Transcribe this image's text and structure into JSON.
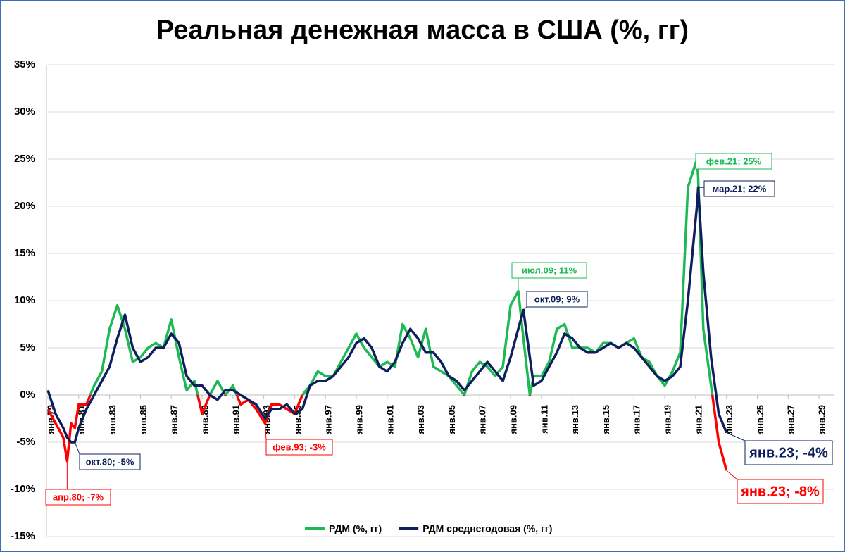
{
  "chart_data": {
    "type": "line",
    "title": "Реальная денежная масса в США (%, гг)",
    "x": [
      1979.0,
      1979.5,
      1980.0,
      1980.25,
      1980.5,
      1980.75,
      1981.0,
      1981.5,
      1982.0,
      1982.5,
      1983.0,
      1983.5,
      1984.0,
      1984.5,
      1985.0,
      1985.5,
      1986.0,
      1986.5,
      1987.0,
      1987.5,
      1988.0,
      1988.5,
      1989.0,
      1989.5,
      1990.0,
      1990.5,
      1991.0,
      1991.5,
      1992.0,
      1992.5,
      1993.083,
      1993.5,
      1994.0,
      1994.5,
      1995.0,
      1995.5,
      1996.0,
      1996.5,
      1997.0,
      1997.5,
      1998.0,
      1998.5,
      1999.0,
      1999.5,
      2000.0,
      2000.5,
      2001.0,
      2001.5,
      2002.0,
      2002.5,
      2003.0,
      2003.5,
      2004.0,
      2004.5,
      2005.0,
      2005.5,
      2006.0,
      2006.5,
      2007.0,
      2007.5,
      2008.0,
      2008.5,
      2009.0,
      2009.5,
      2009.833,
      2010.25,
      2010.5,
      2011.0,
      2011.5,
      2012.0,
      2012.5,
      2013.0,
      2013.5,
      2014.0,
      2014.5,
      2015.0,
      2015.5,
      2016.0,
      2016.5,
      2017.0,
      2017.5,
      2018.0,
      2018.5,
      2019.0,
      2019.5,
      2020.0,
      2020.5,
      2021.083,
      2021.167,
      2021.5,
      2022.0,
      2022.5,
      2023.0
    ],
    "series": [
      {
        "name": "РДМ (%, гг)",
        "color": "#1db954",
        "negative_color": "#ff0000",
        "values": [
          -1.5,
          -3,
          -4.5,
          -7,
          -3,
          -3.5,
          -1,
          -1,
          1,
          2.5,
          7,
          9.5,
          7,
          3.5,
          4,
          5,
          5.5,
          5,
          8,
          4,
          0.5,
          1.5,
          -2,
          0,
          1.5,
          0,
          1,
          -1,
          -0.5,
          -1.5,
          -3,
          -1,
          -1,
          -1.5,
          -2,
          0,
          1,
          2.5,
          2,
          2,
          3.5,
          5,
          6.5,
          5,
          4,
          3,
          3.5,
          3,
          7.5,
          6,
          4,
          7,
          3,
          2.5,
          2,
          1,
          0,
          2.5,
          3.5,
          3,
          2,
          3,
          9.5,
          11,
          6,
          0,
          2,
          2,
          3.5,
          7,
          7.5,
          5,
          5,
          5,
          4.5,
          5.5,
          5.5,
          5,
          5.5,
          6,
          4,
          3.5,
          2,
          1,
          2.5,
          4.5,
          22,
          25,
          23,
          7,
          1,
          -5,
          -8
        ]
      },
      {
        "name": "РДМ среднегодовая (%, гг)",
        "color": "#0d1f5c",
        "values": [
          0.5,
          -2,
          -3.5,
          -4.5,
          -5,
          -5,
          -3.5,
          -1.5,
          0,
          1.5,
          3,
          6,
          8.5,
          5,
          3.5,
          4,
          5,
          5,
          6.5,
          5.5,
          2,
          1,
          1,
          0,
          -0.5,
          0.5,
          0.5,
          0,
          -0.5,
          -1,
          -2.5,
          -1.5,
          -1.5,
          -1,
          -2,
          -1.5,
          1,
          1.5,
          1.5,
          2,
          3,
          4,
          5.5,
          6,
          5,
          3,
          2.5,
          3.5,
          5.5,
          7,
          6,
          4.5,
          4.5,
          3.5,
          2,
          1.5,
          0.5,
          1.5,
          2.5,
          3.5,
          2.5,
          1.5,
          4,
          7,
          9,
          4,
          1,
          1.5,
          3,
          4.5,
          6.5,
          6,
          5,
          4.5,
          4.5,
          5,
          5.5,
          5,
          5.5,
          5,
          4,
          3,
          2,
          1.5,
          2,
          3,
          10,
          20,
          22,
          13,
          4,
          -2,
          -4
        ]
      }
    ],
    "xlim": [
      1979,
      2030
    ],
    "xticks": [
      {
        "value": 1979,
        "label": "янв.79"
      },
      {
        "value": 1981,
        "label": "янв.81"
      },
      {
        "value": 1983,
        "label": "янв.83"
      },
      {
        "value": 1985,
        "label": "янв.85"
      },
      {
        "value": 1987,
        "label": "янв.87"
      },
      {
        "value": 1989,
        "label": "янв.89"
      },
      {
        "value": 1991,
        "label": "янв.91"
      },
      {
        "value": 1993,
        "label": "янв.93"
      },
      {
        "value": 1995,
        "label": "янв.95"
      },
      {
        "value": 1997,
        "label": "янв.97"
      },
      {
        "value": 1999,
        "label": "янв.99"
      },
      {
        "value": 2001,
        "label": "янв.01"
      },
      {
        "value": 2003,
        "label": "янв.03"
      },
      {
        "value": 2005,
        "label": "янв.05"
      },
      {
        "value": 2007,
        "label": "янв.07"
      },
      {
        "value": 2009,
        "label": "янв.09"
      },
      {
        "value": 2011,
        "label": "янв.11"
      },
      {
        "value": 2013,
        "label": "янв.13"
      },
      {
        "value": 2015,
        "label": "янв.15"
      },
      {
        "value": 2017,
        "label": "янв.17"
      },
      {
        "value": 2019,
        "label": "янв.19"
      },
      {
        "value": 2021,
        "label": "янв.21"
      },
      {
        "value": 2023,
        "label": "янв.23"
      },
      {
        "value": 2025,
        "label": "янв.25"
      },
      {
        "value": 2027,
        "label": "янв.27"
      },
      {
        "value": 2029,
        "label": "янв.29"
      }
    ],
    "ylim": [
      -15,
      35
    ],
    "yticks": [
      {
        "value": -15,
        "label": "-15%"
      },
      {
        "value": -10,
        "label": "-10%"
      },
      {
        "value": -5,
        "label": "-5%"
      },
      {
        "value": 0,
        "label": "0%"
      },
      {
        "value": 5,
        "label": "5%"
      },
      {
        "value": 10,
        "label": "10%"
      },
      {
        "value": 15,
        "label": "15%"
      },
      {
        "value": 20,
        "label": "20%"
      },
      {
        "value": 25,
        "label": "25%"
      },
      {
        "value": 30,
        "label": "30%"
      },
      {
        "value": 35,
        "label": "35%"
      }
    ],
    "grid": true,
    "legend": "bottom",
    "annotations": [
      {
        "text": "фев.21; 25%",
        "x": 2021.083,
        "y": 25,
        "color": "#1db954"
      },
      {
        "text": "мар.21; 22%",
        "x": 2021.167,
        "y": 22,
        "color": "#0d1f5c"
      },
      {
        "text": "июл.09; 11%",
        "x": 2009.5,
        "y": 11,
        "color": "#1db954"
      },
      {
        "text": "окт.09; 9%",
        "x": 2009.833,
        "y": 9,
        "color": "#0d1f5c"
      },
      {
        "text": "окт.80; -5%",
        "x": 1980.75,
        "y": -5,
        "color": "#0d1f5c"
      },
      {
        "text": "апр.80; -7%",
        "x": 1980.25,
        "y": -7,
        "color": "#ff0000"
      },
      {
        "text": "фев.93; -3%",
        "x": 1993.083,
        "y": -3,
        "color": "#ff0000"
      },
      {
        "text": "янв.23; -4%",
        "x": 2023.0,
        "y": -4,
        "color": "#0d1f5c"
      },
      {
        "text": "янв.23; -8%",
        "x": 2023.0,
        "y": -8,
        "color": "#ff0000"
      }
    ]
  }
}
